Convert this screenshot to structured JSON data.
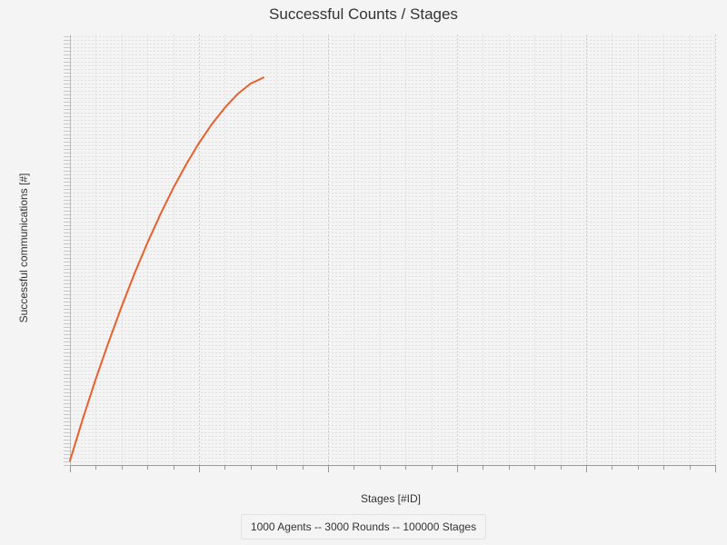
{
  "chart_data": {
    "type": "line",
    "title": "Successful Counts / Stages",
    "xlabel": "Stages [#ID]",
    "ylabel": "Successful communications [#]",
    "grid": true,
    "legend_position": "bottom",
    "xlim": [
      0,
      100000
    ],
    "ylim": [
      0,
      1
    ],
    "series": [
      {
        "name": "1000 Agents -- 3000 Rounds -- 100000 Stages",
        "color": "#e8602c",
        "x": [
          0,
          2000,
          4000,
          6000,
          8000,
          10000,
          12000,
          14000,
          16000,
          18000,
          20000,
          22000,
          24000,
          26000,
          28000,
          30000
        ],
        "y": [
          0.01,
          0.108,
          0.2,
          0.286,
          0.368,
          0.445,
          0.516,
          0.582,
          0.643,
          0.698,
          0.748,
          0.792,
          0.83,
          0.862,
          0.886,
          0.9
        ]
      }
    ]
  }
}
